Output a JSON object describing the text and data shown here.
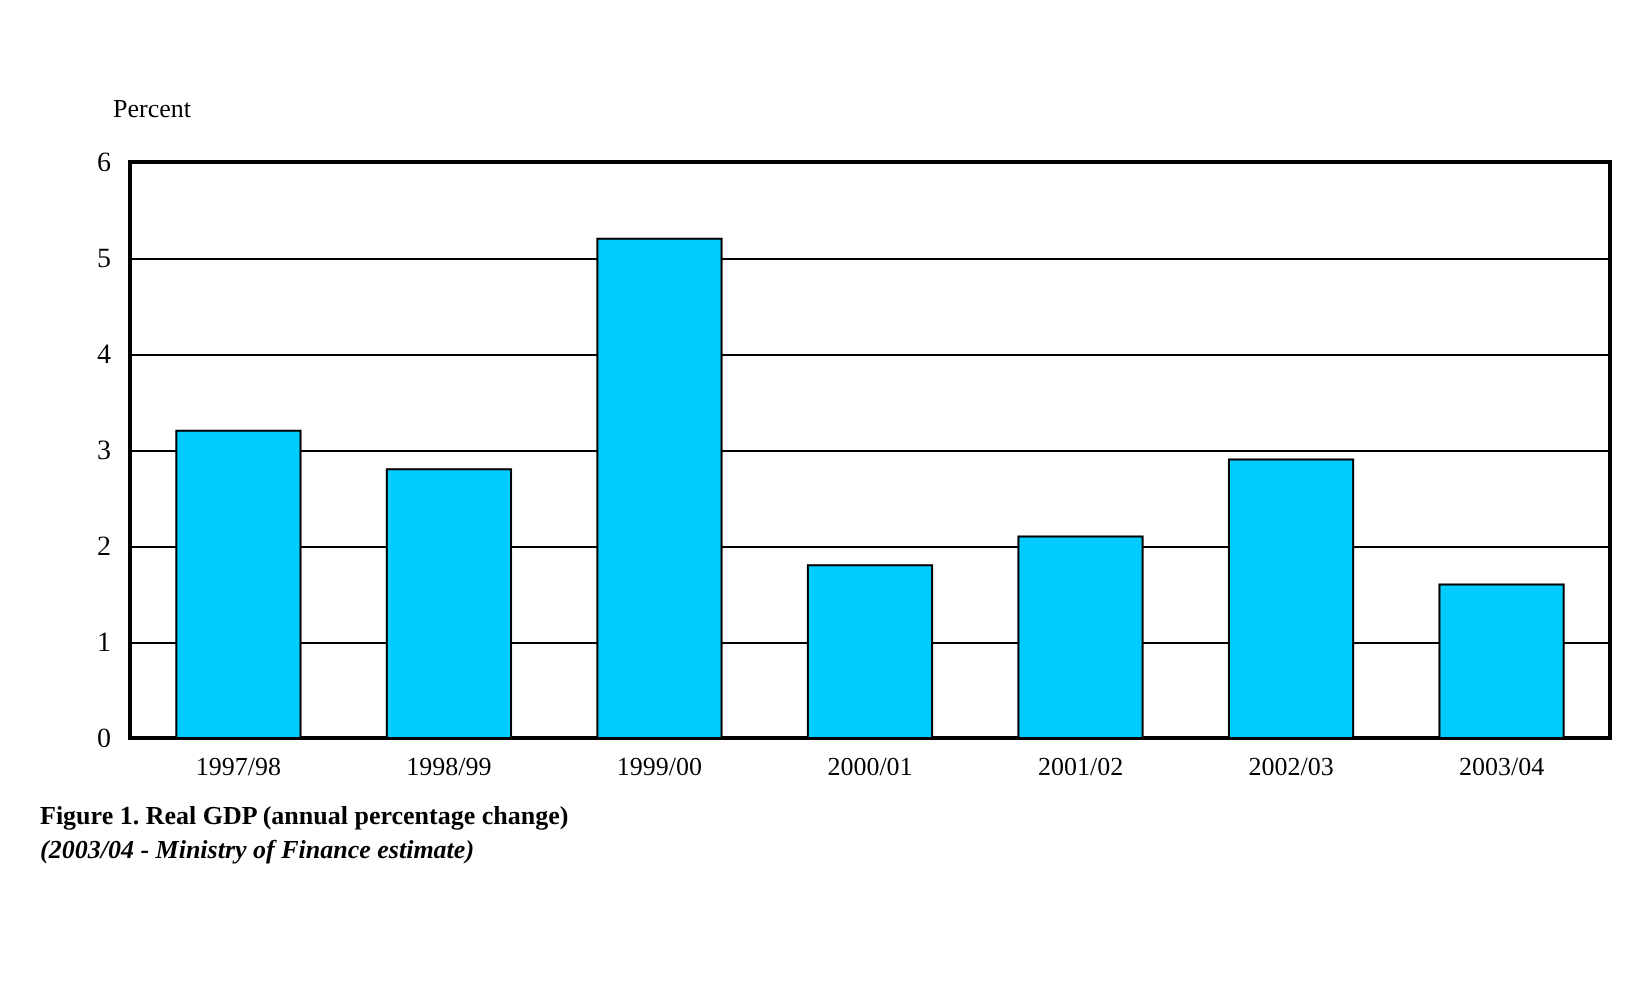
{
  "chart_data": {
    "type": "bar",
    "title": "Figure 1.   Real GDP (annual percentage change)",
    "subtitle": "(2003/04 - Ministry of Finance estimate)",
    "ylabel": "Percent",
    "categories": [
      "1997/98",
      "1998/99",
      "1999/00",
      "2000/01",
      "2001/02",
      "2002/03",
      "2003/04"
    ],
    "values": [
      3.2,
      2.8,
      5.2,
      1.8,
      2.1,
      2.9,
      1.6
    ],
    "color": "#00ccff",
    "ylim": [
      0,
      6
    ],
    "yticks": [
      0,
      1,
      2,
      3,
      4,
      5,
      6
    ],
    "grid": "y"
  }
}
